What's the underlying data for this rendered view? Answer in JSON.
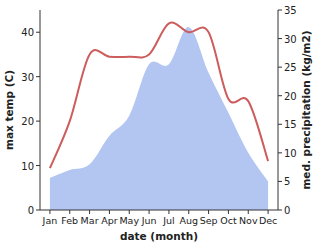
{
  "chart_data": {
    "type": "line",
    "categories": [
      "Jan",
      "Feb",
      "Mar",
      "Apr",
      "May",
      "Jun",
      "Jul",
      "Aug",
      "Sep",
      "Oct",
      "Nov",
      "Dec"
    ],
    "xlabel": "date (month)",
    "ylabel": "max temp (C)",
    "y2label": "med. precipitation (kg/m2)",
    "ylim": [
      0,
      45
    ],
    "yticks": [
      0,
      10,
      20,
      30,
      40
    ],
    "y2lim": [
      0,
      35
    ],
    "y2ticks": [
      0,
      5,
      10,
      15,
      20,
      25,
      30,
      35
    ],
    "grid": false,
    "series": [
      {
        "type": "area",
        "axis": "y2",
        "color": "#b3c6f2",
        "values": [
          5.6,
          7,
          8,
          13,
          16.5,
          25.5,
          25.5,
          32,
          24,
          17,
          10,
          5
        ]
      },
      {
        "type": "line",
        "color": "#cd5c5c",
        "values": [
          9.4,
          20,
          35,
          34.5,
          34.5,
          35,
          42,
          40,
          40,
          25,
          24.5,
          11
        ]
      }
    ]
  }
}
